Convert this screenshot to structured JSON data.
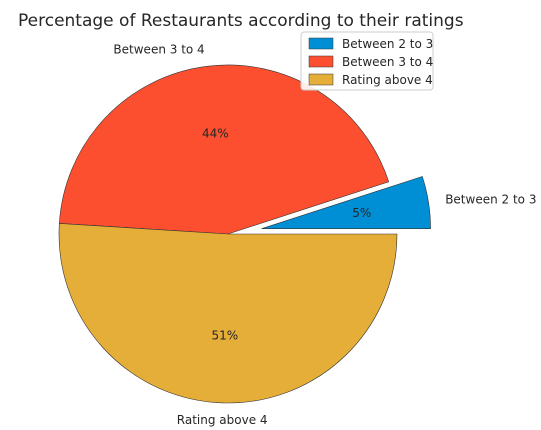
{
  "chart_data": {
    "type": "pie",
    "title": "Percentage of Restaurants according to their ratings",
    "slices": [
      {
        "label": "Between 2 to 3",
        "value": 5,
        "pct_label": "5%",
        "color": "#008fd5",
        "explode": true
      },
      {
        "label": "Between 3 to 4",
        "value": 44,
        "pct_label": "44%",
        "color": "#fc4f30",
        "explode": false
      },
      {
        "label": "Rating above 4",
        "value": 51,
        "pct_label": "51%",
        "color": "#e5ae38",
        "explode": false
      }
    ],
    "legend": {
      "placement": "top-right",
      "entries": [
        "Between 2 to 3",
        "Between 3 to 4",
        "Rating above 4"
      ]
    }
  }
}
